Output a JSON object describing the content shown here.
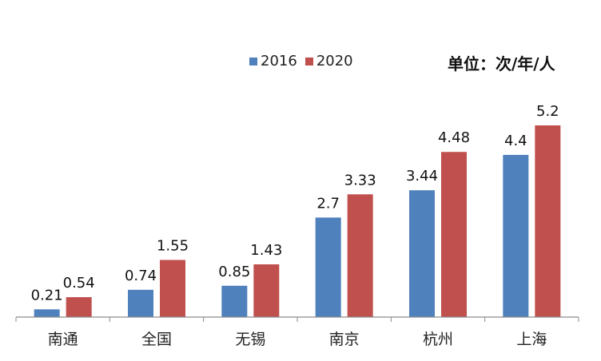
{
  "chart_data": {
    "type": "bar",
    "categories": [
      "南通",
      "全国",
      "无锡",
      "南京",
      "杭州",
      "上海"
    ],
    "series": [
      {
        "name": "2016",
        "values": [
          0.21,
          0.74,
          0.85,
          2.7,
          3.44,
          4.4
        ],
        "labels": [
          "0.21",
          "0.74",
          "0.85",
          "2.7",
          "3.44",
          "4.4"
        ],
        "color": "#4f81bd"
      },
      {
        "name": "2020",
        "values": [
          0.54,
          1.55,
          1.43,
          3.33,
          4.48,
          5.2
        ],
        "labels": [
          "0.54",
          "1.55",
          "1.43",
          "3.33",
          "4.48",
          "5.2"
        ],
        "color": "#c0504d"
      }
    ],
    "unit_label": "单位：次/年/人",
    "ylim": [
      0,
      5.2
    ],
    "grid": false,
    "legend_position": "top"
  }
}
